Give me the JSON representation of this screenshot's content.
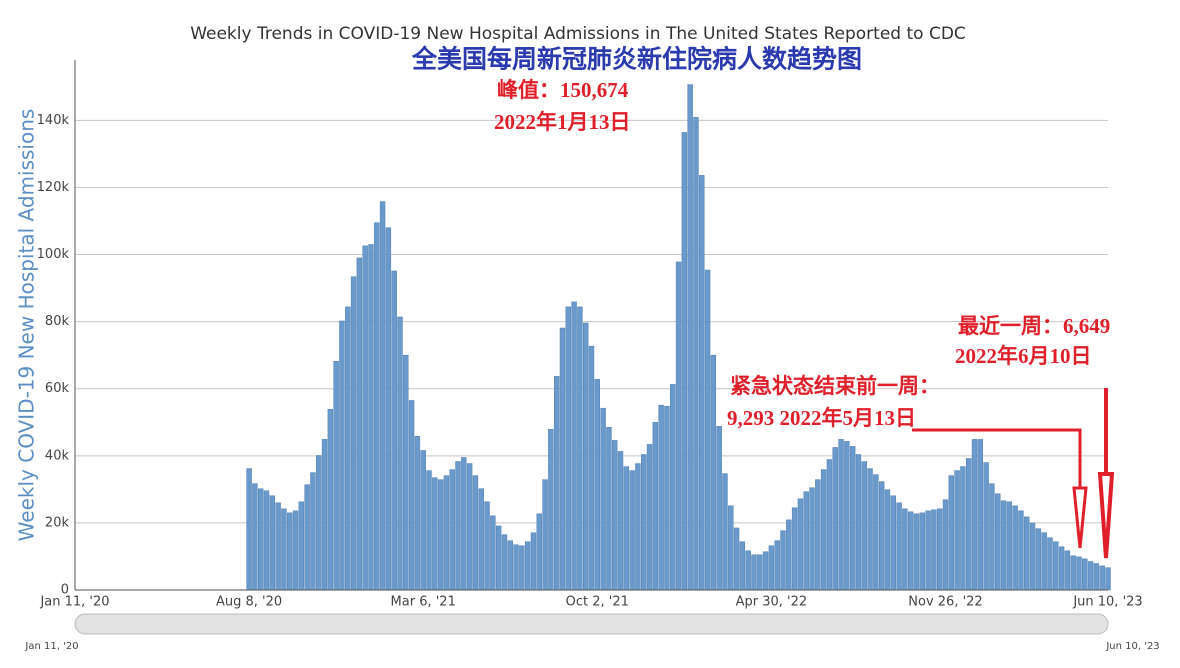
{
  "chart_data": {
    "type": "bar",
    "title": "Weekly Trends in COVID-19 New Hospital Admissions in The United States Reported to CDC",
    "subtitle": "全美国每周新冠肺炎新住院病人数趋势图",
    "y_label": "Weekly COVID-19 New Hospital Admissions",
    "color": "#6a9acb",
    "grid": true,
    "ylim": [
      0,
      158000
    ],
    "yticks": [
      0,
      {
        "value": 20000,
        "label": "20k"
      },
      {
        "value": 40000,
        "label": "40k"
      },
      {
        "value": 60000,
        "label": "60k"
      },
      {
        "value": 80000,
        "label": "80k"
      },
      {
        "value": 100000,
        "label": "100k"
      },
      {
        "value": 120000,
        "label": "120k"
      },
      {
        "value": 140000,
        "label": "140k"
      }
    ],
    "categories": [
      "Jan 11, '20",
      null,
      null,
      null,
      null,
      null,
      null,
      null,
      null,
      null,
      null,
      null,
      null,
      null,
      null,
      null,
      null,
      null,
      null,
      null,
      null,
      null,
      null,
      null,
      null,
      null,
      null,
      null,
      null,
      null,
      "Aug 8, '20",
      null,
      null,
      null,
      null,
      null,
      null,
      null,
      null,
      null,
      null,
      null,
      null,
      null,
      null,
      null,
      null,
      null,
      null,
      null,
      null,
      null,
      null,
      null,
      null,
      null,
      null,
      null,
      null,
      null,
      "Mar 6, '21",
      null,
      null,
      null,
      null,
      null,
      null,
      null,
      null,
      null,
      null,
      null,
      null,
      null,
      null,
      null,
      null,
      null,
      null,
      null,
      null,
      null,
      null,
      null,
      null,
      null,
      null,
      null,
      null,
      null,
      "Oct 2, '21",
      null,
      null,
      null,
      null,
      null,
      null,
      null,
      null,
      null,
      null,
      null,
      null,
      null,
      null,
      null,
      null,
      null,
      null,
      null,
      null,
      null,
      null,
      null,
      null,
      null,
      null,
      null,
      null,
      null,
      "Apr 30, '22",
      null,
      null,
      null,
      null,
      null,
      null,
      null,
      null,
      null,
      null,
      null,
      null,
      null,
      null,
      null,
      null,
      null,
      null,
      null,
      null,
      null,
      null,
      null,
      null,
      null,
      null,
      null,
      null,
      null,
      "Nov 26, '22",
      null,
      null,
      null,
      null,
      null,
      null,
      null,
      null,
      null,
      null,
      null,
      null,
      null,
      null,
      null,
      null,
      null,
      null,
      null,
      null,
      null,
      null,
      null,
      null,
      null,
      null,
      null,
      "Jun 10, '23"
    ],
    "values": [
      null,
      null,
      null,
      null,
      null,
      null,
      null,
      null,
      null,
      null,
      null,
      null,
      null,
      null,
      null,
      null,
      null,
      null,
      null,
      null,
      null,
      null,
      null,
      null,
      null,
      null,
      null,
      null,
      null,
      null,
      36200,
      31700,
      30200,
      29600,
      28100,
      26000,
      24200,
      23000,
      23600,
      26300,
      31400,
      35000,
      40100,
      44900,
      53900,
      68200,
      80200,
      84400,
      93400,
      99000,
      102600,
      103000,
      109500,
      115800,
      108000,
      95100,
      81400,
      70000,
      56500,
      45800,
      41600,
      35600,
      33500,
      32900,
      34100,
      35900,
      38300,
      39500,
      37700,
      34100,
      30200,
      26300,
      22100,
      19100,
      16500,
      14700,
      13500,
      13200,
      14400,
      17100,
      22700,
      32900,
      47900,
      63700,
      78100,
      84400,
      85900,
      84400,
      79600,
      72700,
      62800,
      54200,
      48500,
      44600,
      41300,
      36800,
      35600,
      37700,
      40400,
      43400,
      50000,
      55100,
      54800,
      61300,
      97800,
      136400,
      150674,
      140900,
      123600,
      95400,
      70000,
      48800,
      34700,
      25100,
      18500,
      14400,
      11700,
      10500,
      10500,
      11400,
      13200,
      14700,
      17700,
      20900,
      24500,
      27200,
      29300,
      30500,
      32900,
      35900,
      38900,
      42500,
      44900,
      44300,
      42800,
      40400,
      38300,
      36200,
      34400,
      32300,
      29900,
      28100,
      26000,
      24200,
      23300,
      22700,
      23000,
      23600,
      23900,
      24200,
      26900,
      34100,
      35600,
      36800,
      39200,
      44900,
      44900,
      38000,
      31700,
      28700,
      26600,
      26300,
      25100,
      23600,
      21800,
      20000,
      18300,
      17100,
      15600,
      14400,
      12900,
      11700,
      10200,
      9900,
      9293,
      8500,
      7900,
      7200,
      6649
    ],
    "annotations": [
      "峰值：150,674",
      "2022年1月13日",
      "紧急状态结束前一周：",
      "9,293  2022年5月13日",
      "最近一周：6,649",
      "2022年6月10日"
    ],
    "range_labels": [
      "Jan 11, '20",
      "Jun 10, '23"
    ]
  }
}
